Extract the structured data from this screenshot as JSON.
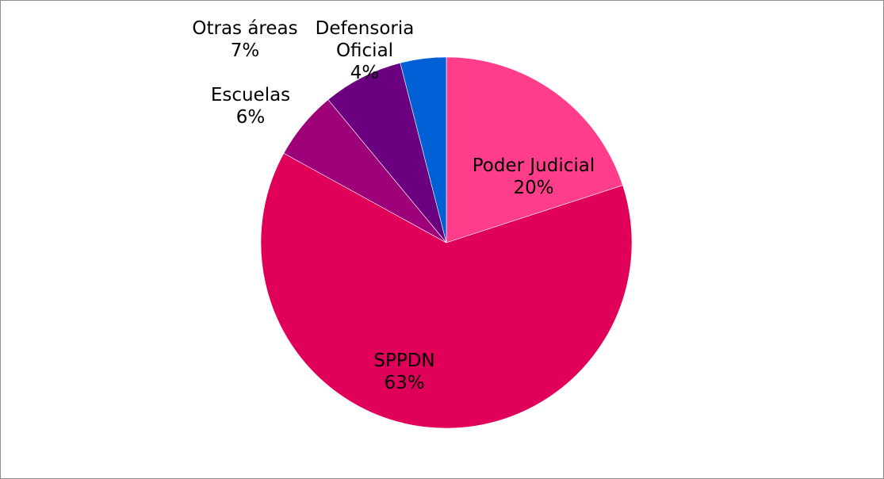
{
  "chart_data": {
    "type": "pie",
    "start_angle_deg": 0,
    "direction": "clockwise",
    "slices": [
      {
        "label_lines": [
          "Poder Judicial",
          "20%"
        ],
        "value": 20,
        "color": "#ff3d8a"
      },
      {
        "label_lines": [
          "SPPDN",
          "63%"
        ],
        "value": 63,
        "color": "#e0005a"
      },
      {
        "label_lines": [
          "Escuelas",
          "6%"
        ],
        "value": 6,
        "color": "#9e007a"
      },
      {
        "label_lines": [
          "Otras áreas",
          "7%"
        ],
        "value": 7,
        "color": "#6a0080"
      },
      {
        "label_lines": [
          "Defensoria",
          "Oficial",
          "4%"
        ],
        "value": 4,
        "color": "#0060d6"
      }
    ]
  }
}
